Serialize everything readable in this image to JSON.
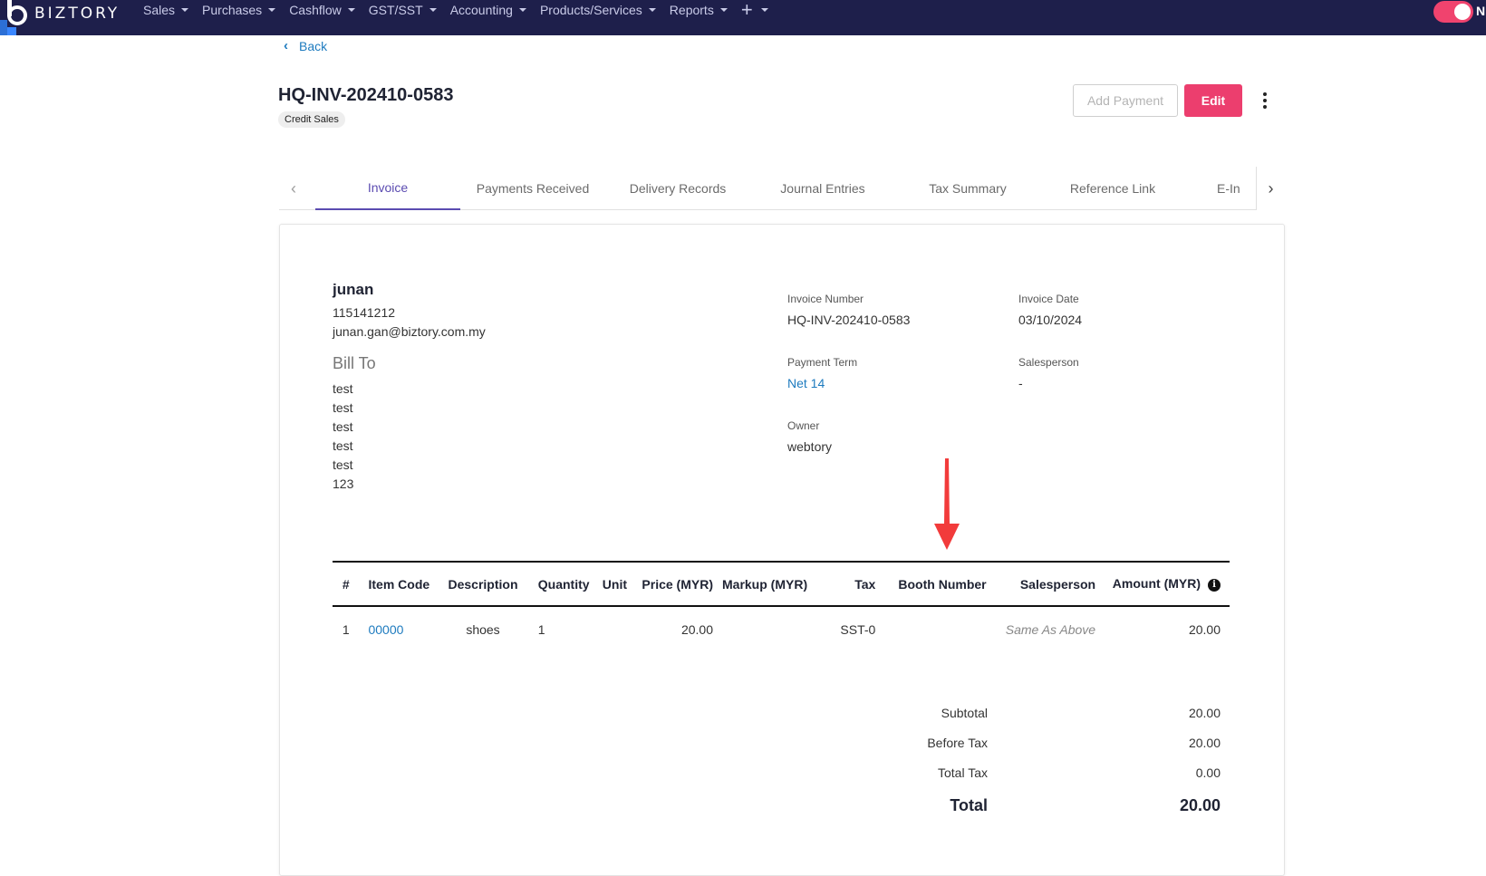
{
  "brand": {
    "name": "BIZTORY"
  },
  "nav": {
    "items": [
      "Sales",
      "Purchases",
      "Cashflow",
      "GST/SST",
      "Accounting",
      "Products/Services",
      "Reports"
    ],
    "plus_label": "+",
    "toggle_letter": "N"
  },
  "header": {
    "back_label": "Back",
    "title": "HQ-INV-202410-0583",
    "badge": "Credit Sales",
    "add_payment_label": "Add Payment",
    "edit_label": "Edit"
  },
  "tabs": {
    "items": [
      "Invoice",
      "Payments Received",
      "Delivery Records",
      "Journal Entries",
      "Tax Summary",
      "Reference Link",
      "E-In"
    ],
    "active": "Invoice"
  },
  "customer": {
    "name": "junan",
    "phone": "115141212",
    "email": "junan.gan@biztory.com.my",
    "bill_to_label": "Bill To",
    "bill_to_lines": [
      "test",
      "test",
      "test",
      "test",
      "test",
      "123"
    ]
  },
  "meta": {
    "invoice_number_label": "Invoice Number",
    "invoice_number": "HQ-INV-202410-0583",
    "invoice_date_label": "Invoice Date",
    "invoice_date": "03/10/2024",
    "payment_term_label": "Payment Term",
    "payment_term": "Net 14",
    "salesperson_label": "Salesperson",
    "salesperson": "-",
    "owner_label": "Owner",
    "owner": "webtory"
  },
  "table": {
    "headers": [
      "#",
      "Item Code",
      "Description",
      "Quantity",
      "Unit",
      "Price (MYR)",
      "Markup (MYR)",
      "Tax",
      "Booth Number",
      "Salesperson",
      "Amount (MYR)"
    ],
    "rows": [
      {
        "idx": "1",
        "code": "00000",
        "desc": "shoes",
        "qty": "1",
        "unit": "",
        "price": "20.00",
        "markup": "",
        "tax": "SST-0",
        "booth": "",
        "salesperson": "Same As Above",
        "amount": "20.00"
      }
    ]
  },
  "totals": {
    "subtotal_label": "Subtotal",
    "subtotal": "20.00",
    "before_tax_label": "Before Tax",
    "before_tax": "20.00",
    "total_tax_label": "Total Tax",
    "total_tax": "0.00",
    "total_label": "Total",
    "total": "20.00"
  },
  "colors": {
    "nav_bg": "#1e1f4b",
    "accent": "#ec3e6e",
    "tab_active": "#5b4bb1",
    "link": "#1e7bbf",
    "annotation": "#f23b3b"
  }
}
